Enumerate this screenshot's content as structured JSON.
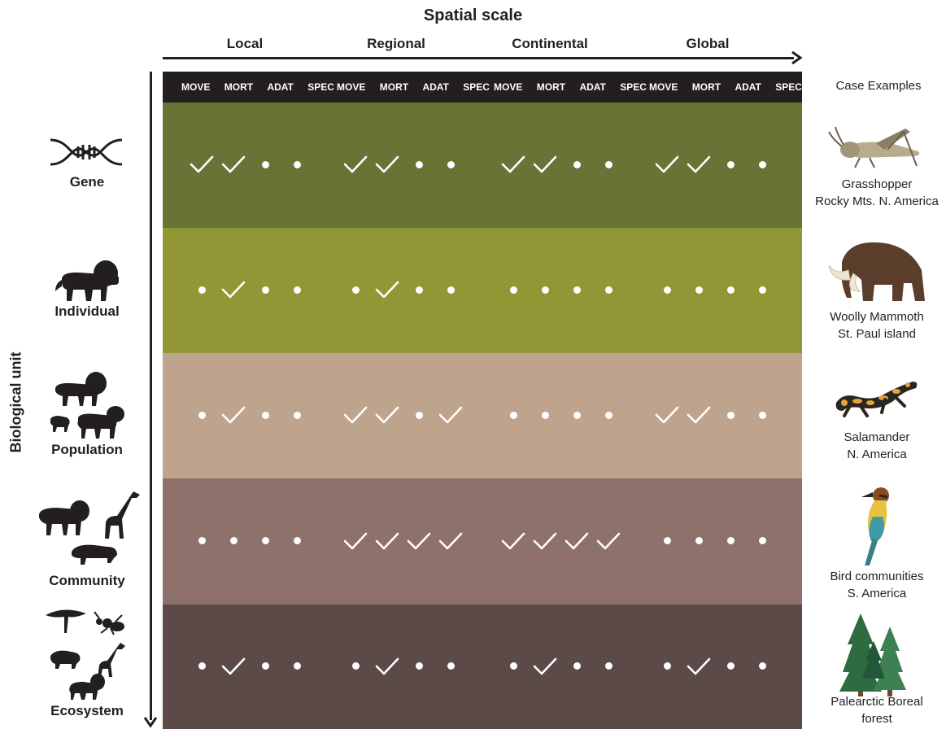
{
  "x_axis": {
    "title": "Spatial scale",
    "scales": [
      "Local",
      "Regional",
      "Continental",
      "Global"
    ]
  },
  "y_axis": {
    "title": "Biological unit"
  },
  "header": {
    "columns": [
      "MOVE",
      "MORT",
      "ADAT",
      "SPEC"
    ],
    "case_examples_label": "Case Examples"
  },
  "rows": [
    {
      "unit": "Gene",
      "icon": "dna-icon",
      "color": "#687436",
      "case": {
        "line1": "Grasshopper",
        "line2": "Rocky Mts. N. America",
        "image": "grasshopper-image"
      },
      "marks": [
        [
          "check",
          "check",
          "dot",
          "dot"
        ],
        [
          "check",
          "check",
          "dot",
          "dot"
        ],
        [
          "check",
          "check",
          "dot",
          "dot"
        ],
        [
          "check",
          "check",
          "dot",
          "dot"
        ]
      ]
    },
    {
      "unit": "Individual",
      "icon": "lion-icon",
      "color": "#919735",
      "case": {
        "line1": "Woolly Mammoth",
        "line2": "St. Paul island",
        "image": "mammoth-image"
      },
      "marks": [
        [
          "dot",
          "check",
          "dot",
          "dot"
        ],
        [
          "dot",
          "check",
          "dot",
          "dot"
        ],
        [
          "dot",
          "dot",
          "dot",
          "dot"
        ],
        [
          "dot",
          "dot",
          "dot",
          "dot"
        ]
      ]
    },
    {
      "unit": "Population",
      "icon": "lion-family-icon",
      "color": "#bea48c",
      "case": {
        "line1": "Salamander",
        "line2": "N. America",
        "image": "salamander-image"
      },
      "marks": [
        [
          "dot",
          "check",
          "dot",
          "dot"
        ],
        [
          "check",
          "check",
          "dot",
          "check"
        ],
        [
          "dot",
          "dot",
          "dot",
          "dot"
        ],
        [
          "check",
          "check",
          "dot",
          "dot"
        ]
      ]
    },
    {
      "unit": "Community",
      "icon": "animal-community-icon",
      "color": "#8d716a",
      "case": {
        "line1": "Bird communities",
        "line2": "S. America",
        "image": "bee-eater-image"
      },
      "marks": [
        [
          "dot",
          "dot",
          "dot",
          "dot"
        ],
        [
          "check",
          "check",
          "check",
          "check"
        ],
        [
          "check",
          "check",
          "check",
          "check"
        ],
        [
          "dot",
          "dot",
          "dot",
          "dot"
        ]
      ]
    },
    {
      "unit": "Ecosystem",
      "icon": "ecosystem-icon",
      "color": "#5b4a47",
      "case": {
        "line1": "Palearctic Boreal",
        "line2": "forest",
        "image": "boreal-forest-image"
      },
      "marks": [
        [
          "dot",
          "check",
          "dot",
          "dot"
        ],
        [
          "dot",
          "check",
          "dot",
          "dot"
        ],
        [
          "dot",
          "check",
          "dot",
          "dot"
        ],
        [
          "dot",
          "check",
          "dot",
          "dot"
        ]
      ]
    }
  ]
}
